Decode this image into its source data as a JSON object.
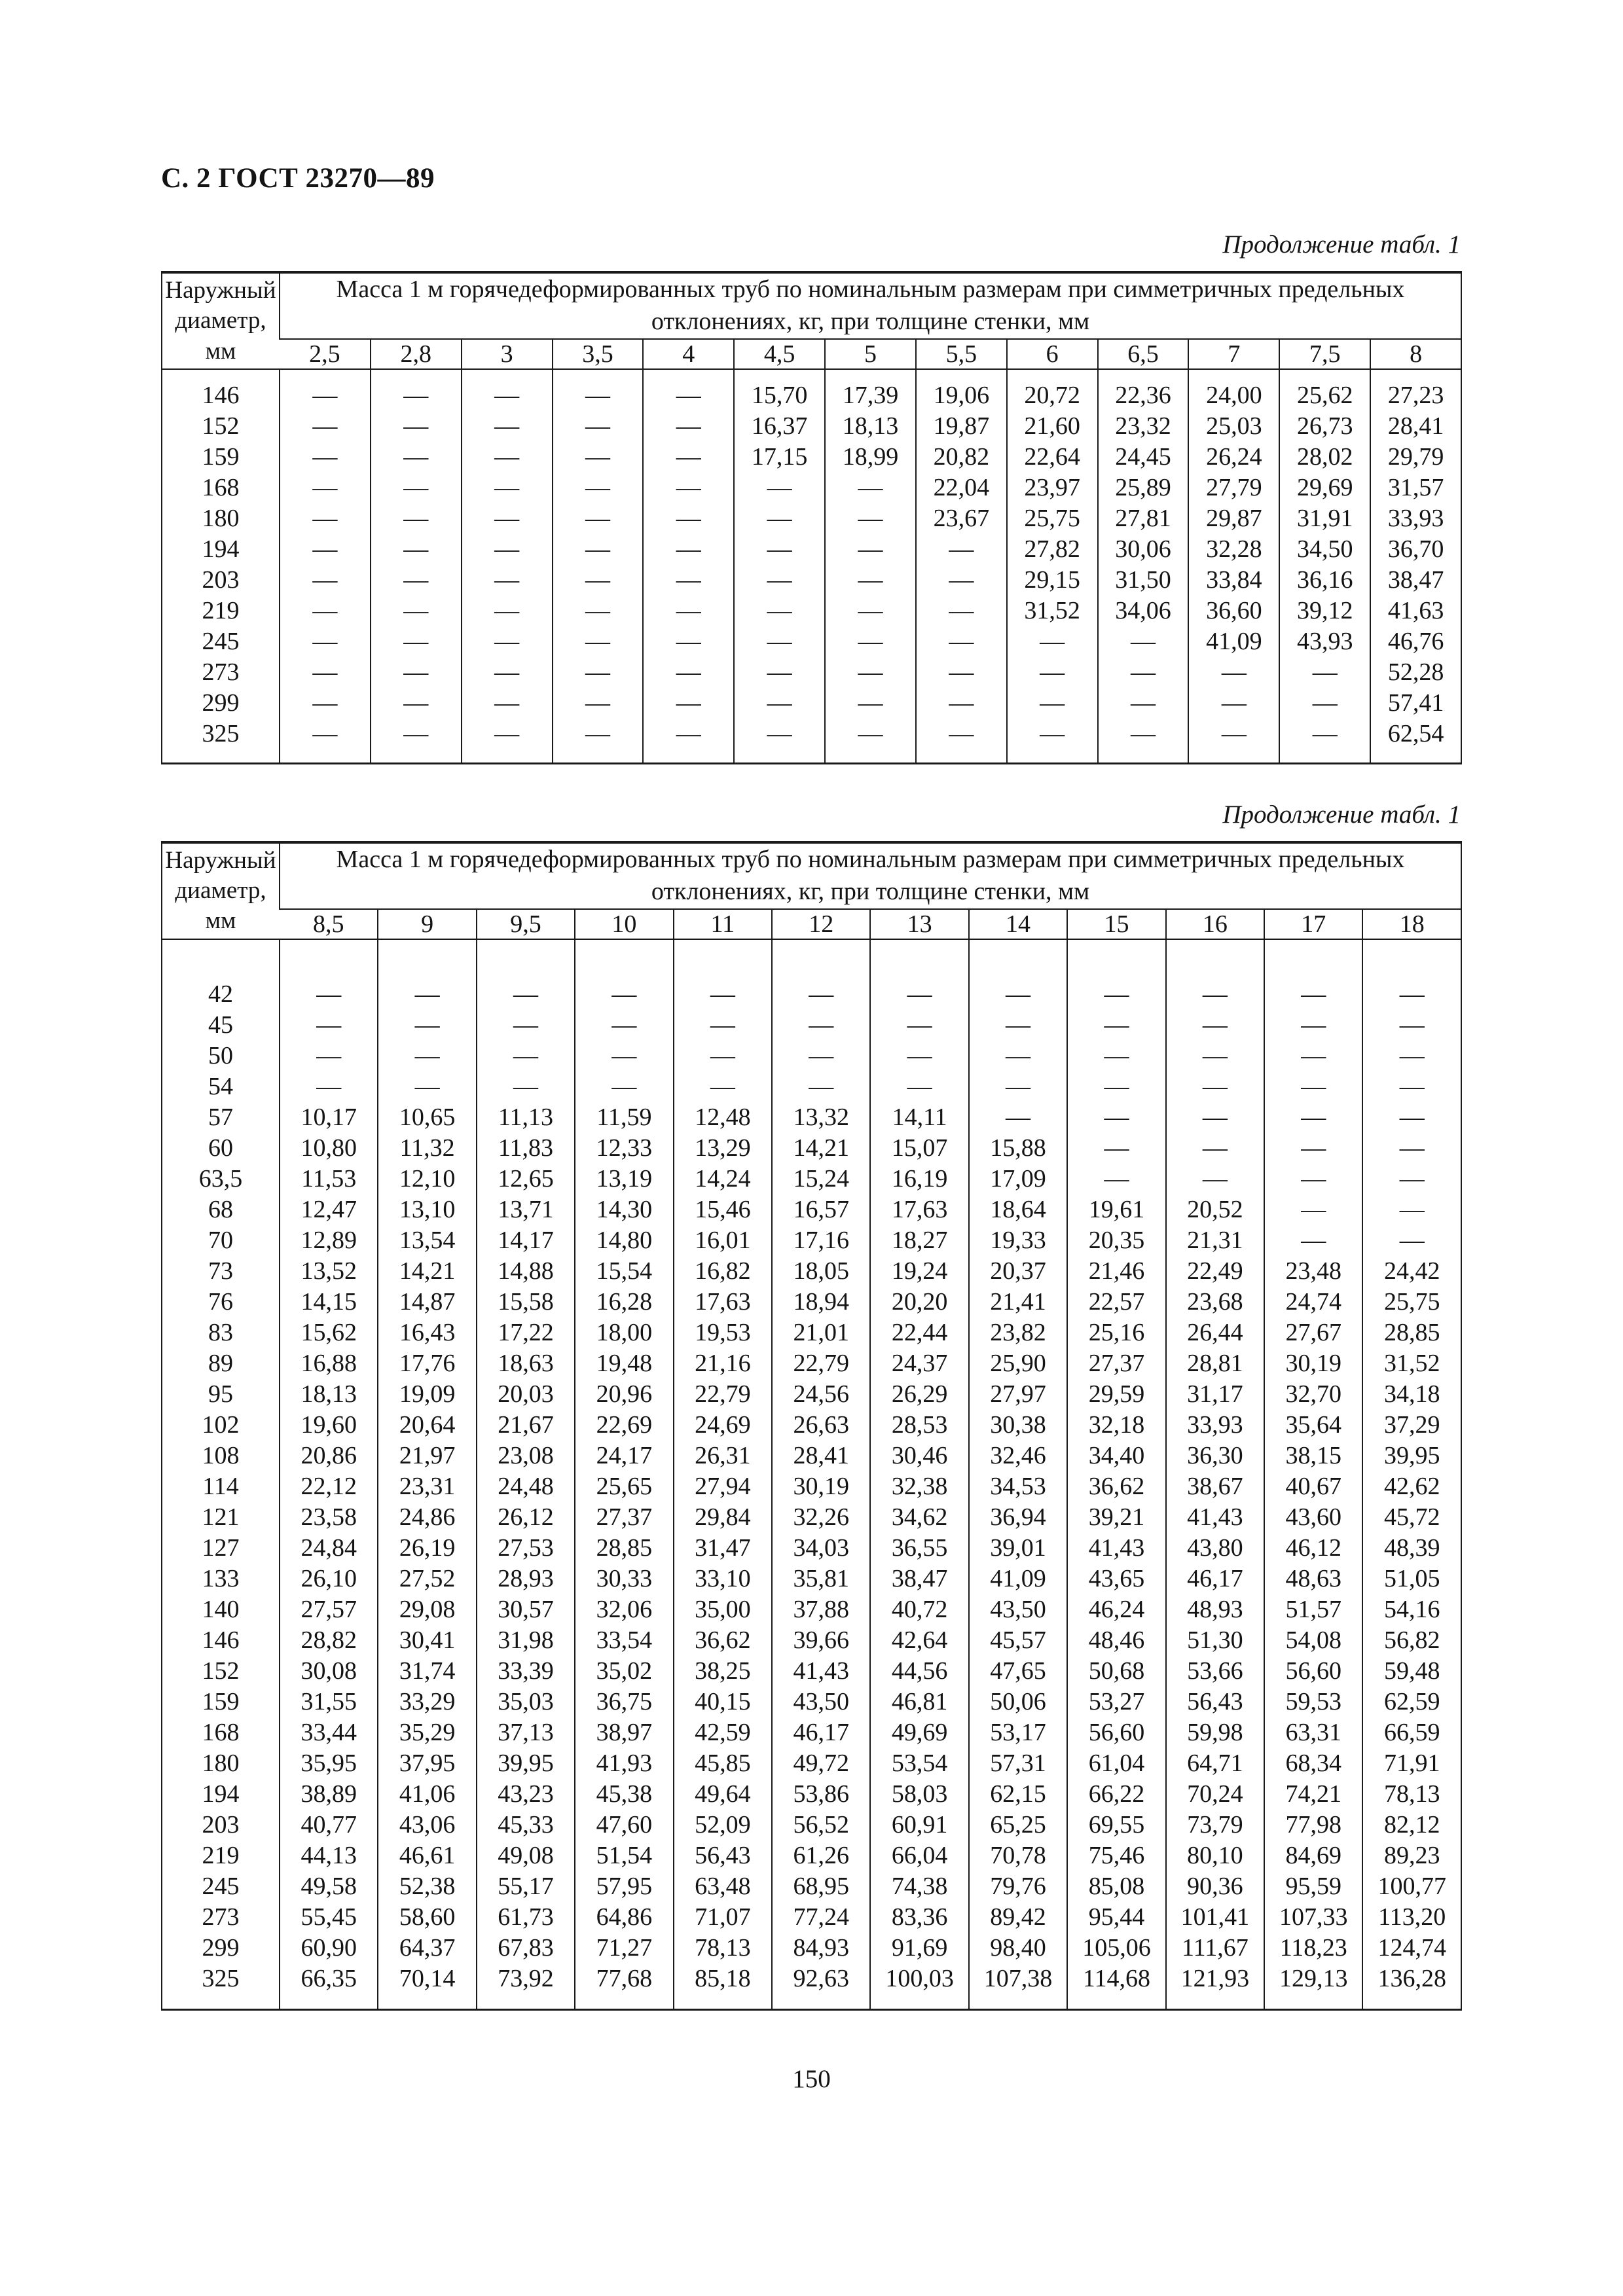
{
  "page": {
    "header": "С. 2 ГОСТ 23270—89",
    "page_number": "150"
  },
  "table1": {
    "continuation": "Продолжение табл. 1",
    "corner_header": "Наружный диаметр, мм",
    "span_header": "Масса 1 м горячедеформированных труб  по номинальным размерам при симметричных предельных отклонениях, кг, при толщине стенки, мм",
    "columns": [
      "2,5",
      "2,8",
      "3",
      "3,5",
      "4",
      "4,5",
      "5",
      "5,5",
      "6",
      "6,5",
      "7",
      "7,5",
      "8"
    ],
    "rows": [
      {
        "d": "146",
        "v": [
          "—",
          "—",
          "—",
          "—",
          "—",
          "15,70",
          "17,39",
          "19,06",
          "20,72",
          "22,36",
          "24,00",
          "25,62",
          "27,23"
        ]
      },
      {
        "d": "152",
        "v": [
          "—",
          "—",
          "—",
          "—",
          "—",
          "16,37",
          "18,13",
          "19,87",
          "21,60",
          "23,32",
          "25,03",
          "26,73",
          "28,41"
        ]
      },
      {
        "d": "159",
        "v": [
          "—",
          "—",
          "—",
          "—",
          "—",
          "17,15",
          "18,99",
          "20,82",
          "22,64",
          "24,45",
          "26,24",
          "28,02",
          "29,79"
        ]
      },
      {
        "d": "168",
        "v": [
          "—",
          "—",
          "—",
          "—",
          "—",
          "—",
          "—",
          "22,04",
          "23,97",
          "25,89",
          "27,79",
          "29,69",
          "31,57"
        ]
      },
      {
        "d": "180",
        "v": [
          "—",
          "—",
          "—",
          "—",
          "—",
          "—",
          "—",
          "23,67",
          "25,75",
          "27,81",
          "29,87",
          "31,91",
          "33,93"
        ]
      },
      {
        "d": "194",
        "v": [
          "—",
          "—",
          "—",
          "—",
          "—",
          "—",
          "—",
          "—",
          "27,82",
          "30,06",
          "32,28",
          "34,50",
          "36,70"
        ]
      },
      {
        "d": "203",
        "v": [
          "—",
          "—",
          "—",
          "—",
          "—",
          "—",
          "—",
          "—",
          "29,15",
          "31,50",
          "33,84",
          "36,16",
          "38,47"
        ]
      },
      {
        "d": "219",
        "v": [
          "—",
          "—",
          "—",
          "—",
          "—",
          "—",
          "—",
          "—",
          "31,52",
          "34,06",
          "36,60",
          "39,12",
          "41,63"
        ]
      },
      {
        "d": "245",
        "v": [
          "—",
          "—",
          "—",
          "—",
          "—",
          "—",
          "—",
          "—",
          "—",
          "—",
          "41,09",
          "43,93",
          "46,76"
        ]
      },
      {
        "d": "273",
        "v": [
          "—",
          "—",
          "—",
          "—",
          "—",
          "—",
          "—",
          "—",
          "—",
          "—",
          "—",
          "—",
          "52,28"
        ]
      },
      {
        "d": "299",
        "v": [
          "—",
          "—",
          "—",
          "—",
          "—",
          "—",
          "—",
          "—",
          "—",
          "—",
          "—",
          "—",
          "57,41"
        ]
      },
      {
        "d": "325",
        "v": [
          "—",
          "—",
          "—",
          "—",
          "—",
          "—",
          "—",
          "—",
          "—",
          "—",
          "—",
          "—",
          "62,54"
        ]
      }
    ]
  },
  "table2": {
    "continuation": "Продолжение табл. 1",
    "corner_header": "Наружный диаметр, мм",
    "span_header": "Масса 1 м горячедеформированных труб  по номинальным размерам при симметричных предельных отклонениях, кг, при толщине стенки, мм",
    "columns": [
      "8,5",
      "9",
      "9,5",
      "10",
      "11",
      "12",
      "13",
      "14",
      "15",
      "16",
      "17",
      "18"
    ],
    "rows": [
      {
        "d": "42",
        "v": [
          "—",
          "—",
          "—",
          "—",
          "—",
          "—",
          "—",
          "—",
          "—",
          "—",
          "—",
          "—"
        ]
      },
      {
        "d": "45",
        "v": [
          "—",
          "—",
          "—",
          "—",
          "—",
          "—",
          "—",
          "—",
          "—",
          "—",
          "—",
          "—"
        ]
      },
      {
        "d": "50",
        "v": [
          "—",
          "—",
          "—",
          "—",
          "—",
          "—",
          "—",
          "—",
          "—",
          "—",
          "—",
          "—"
        ]
      },
      {
        "d": "54",
        "v": [
          "—",
          "—",
          "—",
          "—",
          "—",
          "—",
          "—",
          "—",
          "—",
          "—",
          "—",
          "—"
        ]
      },
      {
        "d": "57",
        "v": [
          "10,17",
          "10,65",
          "11,13",
          "11,59",
          "12,48",
          "13,32",
          "14,11",
          "—",
          "—",
          "—",
          "—",
          "—"
        ]
      },
      {
        "d": "60",
        "v": [
          "10,80",
          "11,32",
          "11,83",
          "12,33",
          "13,29",
          "14,21",
          "15,07",
          "15,88",
          "—",
          "—",
          "—",
          "—"
        ]
      },
      {
        "d": "63,5",
        "v": [
          "11,53",
          "12,10",
          "12,65",
          "13,19",
          "14,24",
          "15,24",
          "16,19",
          "17,09",
          "—",
          "—",
          "—",
          "—"
        ]
      },
      {
        "d": "68",
        "v": [
          "12,47",
          "13,10",
          "13,71",
          "14,30",
          "15,46",
          "16,57",
          "17,63",
          "18,64",
          "19,61",
          "20,52",
          "—",
          "—"
        ]
      },
      {
        "d": "70",
        "v": [
          "12,89",
          "13,54",
          "14,17",
          "14,80",
          "16,01",
          "17,16",
          "18,27",
          "19,33",
          "20,35",
          "21,31",
          "—",
          "—"
        ]
      },
      {
        "d": "73",
        "v": [
          "13,52",
          "14,21",
          "14,88",
          "15,54",
          "16,82",
          "18,05",
          "19,24",
          "20,37",
          "21,46",
          "22,49",
          "23,48",
          "24,42"
        ]
      },
      {
        "d": "76",
        "v": [
          "14,15",
          "14,87",
          "15,58",
          "16,28",
          "17,63",
          "18,94",
          "20,20",
          "21,41",
          "22,57",
          "23,68",
          "24,74",
          "25,75"
        ]
      },
      {
        "d": "83",
        "v": [
          "15,62",
          "16,43",
          "17,22",
          "18,00",
          "19,53",
          "21,01",
          "22,44",
          "23,82",
          "25,16",
          "26,44",
          "27,67",
          "28,85"
        ]
      },
      {
        "d": "89",
        "v": [
          "16,88",
          "17,76",
          "18,63",
          "19,48",
          "21,16",
          "22,79",
          "24,37",
          "25,90",
          "27,37",
          "28,81",
          "30,19",
          "31,52"
        ]
      },
      {
        "d": "95",
        "v": [
          "18,13",
          "19,09",
          "20,03",
          "20,96",
          "22,79",
          "24,56",
          "26,29",
          "27,97",
          "29,59",
          "31,17",
          "32,70",
          "34,18"
        ]
      },
      {
        "d": "102",
        "v": [
          "19,60",
          "20,64",
          "21,67",
          "22,69",
          "24,69",
          "26,63",
          "28,53",
          "30,38",
          "32,18",
          "33,93",
          "35,64",
          "37,29"
        ]
      },
      {
        "d": "108",
        "v": [
          "20,86",
          "21,97",
          "23,08",
          "24,17",
          "26,31",
          "28,41",
          "30,46",
          "32,46",
          "34,40",
          "36,30",
          "38,15",
          "39,95"
        ]
      },
      {
        "d": "114",
        "v": [
          "22,12",
          "23,31",
          "24,48",
          "25,65",
          "27,94",
          "30,19",
          "32,38",
          "34,53",
          "36,62",
          "38,67",
          "40,67",
          "42,62"
        ]
      },
      {
        "d": "121",
        "v": [
          "23,58",
          "24,86",
          "26,12",
          "27,37",
          "29,84",
          "32,26",
          "34,62",
          "36,94",
          "39,21",
          "41,43",
          "43,60",
          "45,72"
        ]
      },
      {
        "d": "127",
        "v": [
          "24,84",
          "26,19",
          "27,53",
          "28,85",
          "31,47",
          "34,03",
          "36,55",
          "39,01",
          "41,43",
          "43,80",
          "46,12",
          "48,39"
        ]
      },
      {
        "d": "133",
        "v": [
          "26,10",
          "27,52",
          "28,93",
          "30,33",
          "33,10",
          "35,81",
          "38,47",
          "41,09",
          "43,65",
          "46,17",
          "48,63",
          "51,05"
        ]
      },
      {
        "d": "140",
        "v": [
          "27,57",
          "29,08",
          "30,57",
          "32,06",
          "35,00",
          "37,88",
          "40,72",
          "43,50",
          "46,24",
          "48,93",
          "51,57",
          "54,16"
        ]
      },
      {
        "d": "146",
        "v": [
          "28,82",
          "30,41",
          "31,98",
          "33,54",
          "36,62",
          "39,66",
          "42,64",
          "45,57",
          "48,46",
          "51,30",
          "54,08",
          "56,82"
        ]
      },
      {
        "d": "152",
        "v": [
          "30,08",
          "31,74",
          "33,39",
          "35,02",
          "38,25",
          "41,43",
          "44,56",
          "47,65",
          "50,68",
          "53,66",
          "56,60",
          "59,48"
        ]
      },
      {
        "d": "159",
        "v": [
          "31,55",
          "33,29",
          "35,03",
          "36,75",
          "40,15",
          "43,50",
          "46,81",
          "50,06",
          "53,27",
          "56,43",
          "59,53",
          "62,59"
        ]
      },
      {
        "d": "168",
        "v": [
          "33,44",
          "35,29",
          "37,13",
          "38,97",
          "42,59",
          "46,17",
          "49,69",
          "53,17",
          "56,60",
          "59,98",
          "63,31",
          "66,59"
        ]
      },
      {
        "d": "180",
        "v": [
          "35,95",
          "37,95",
          "39,95",
          "41,93",
          "45,85",
          "49,72",
          "53,54",
          "57,31",
          "61,04",
          "64,71",
          "68,34",
          "71,91"
        ]
      },
      {
        "d": "194",
        "v": [
          "38,89",
          "41,06",
          "43,23",
          "45,38",
          "49,64",
          "53,86",
          "58,03",
          "62,15",
          "66,22",
          "70,24",
          "74,21",
          "78,13"
        ]
      },
      {
        "d": "203",
        "v": [
          "40,77",
          "43,06",
          "45,33",
          "47,60",
          "52,09",
          "56,52",
          "60,91",
          "65,25",
          "69,55",
          "73,79",
          "77,98",
          "82,12"
        ]
      },
      {
        "d": "219",
        "v": [
          "44,13",
          "46,61",
          "49,08",
          "51,54",
          "56,43",
          "61,26",
          "66,04",
          "70,78",
          "75,46",
          "80,10",
          "84,69",
          "89,23"
        ]
      },
      {
        "d": "245",
        "v": [
          "49,58",
          "52,38",
          "55,17",
          "57,95",
          "63,48",
          "68,95",
          "74,38",
          "79,76",
          "85,08",
          "90,36",
          "95,59",
          "100,77"
        ]
      },
      {
        "d": "273",
        "v": [
          "55,45",
          "58,60",
          "61,73",
          "64,86",
          "71,07",
          "77,24",
          "83,36",
          "89,42",
          "95,44",
          "101,41",
          "107,33",
          "113,20"
        ]
      },
      {
        "d": "299",
        "v": [
          "60,90",
          "64,37",
          "67,83",
          "71,27",
          "78,13",
          "84,93",
          "91,69",
          "98,40",
          "105,06",
          "111,67",
          "118,23",
          "124,74"
        ]
      },
      {
        "d": "325",
        "v": [
          "66,35",
          "70,14",
          "73,92",
          "77,68",
          "85,18",
          "92,63",
          "100,03",
          "107,38",
          "114,68",
          "121,93",
          "129,13",
          "136,28"
        ]
      }
    ]
  }
}
